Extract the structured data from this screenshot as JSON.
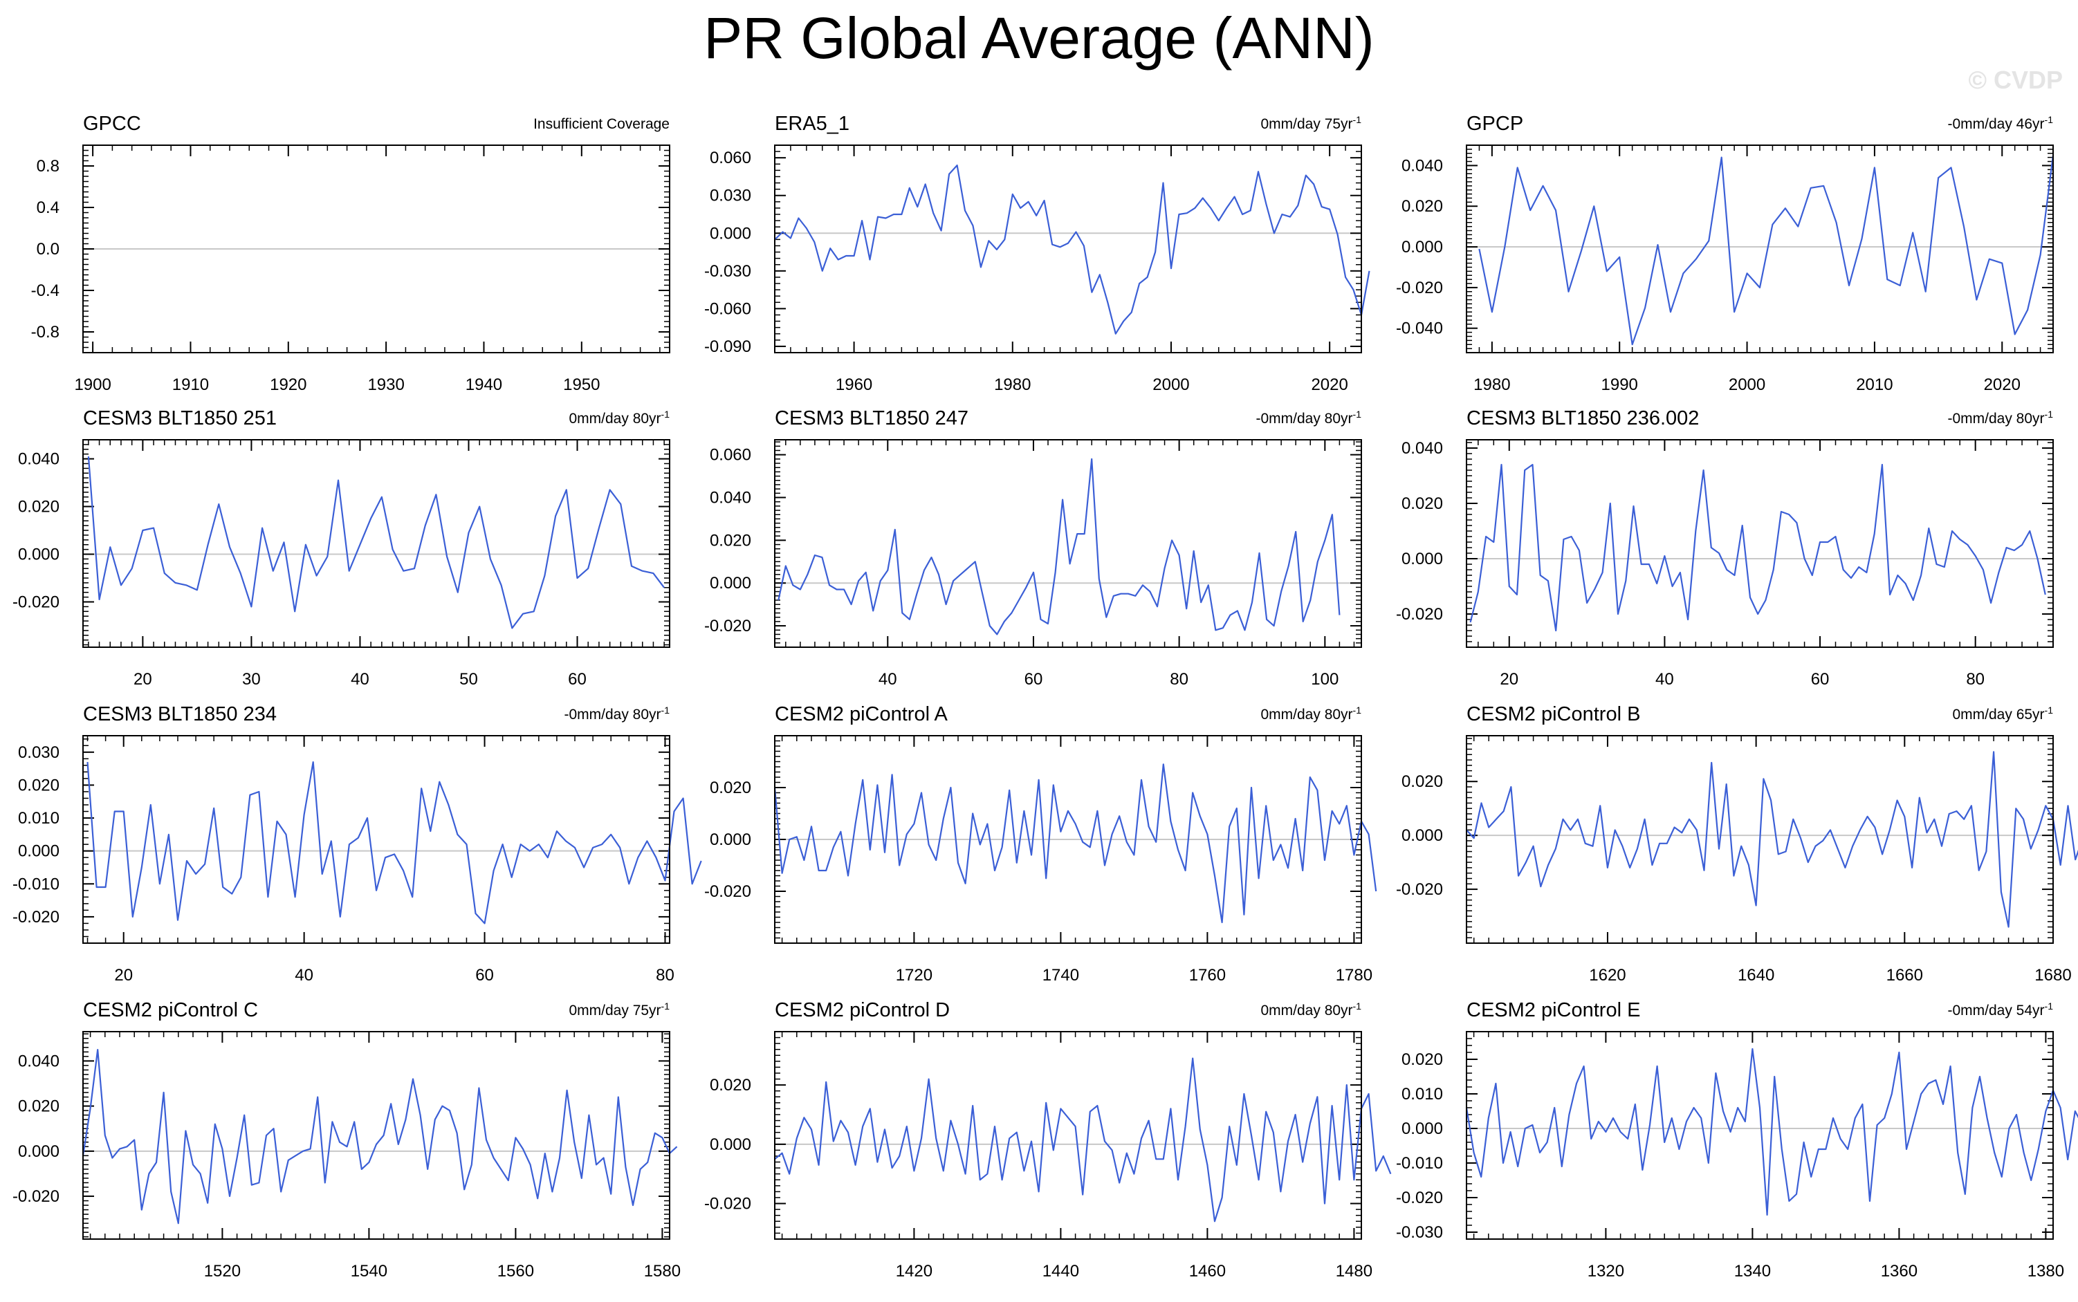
{
  "figure": {
    "title": "PR Global Average (ANN)",
    "watermark": "© CVDP",
    "line_color": "#3b5fd6",
    "zero_line_color": "#c8c8c8"
  },
  "chart_data": [
    {
      "type": "line",
      "title": "GPCC",
      "trend": "Insufficient Coverage",
      "xlim": [
        1899,
        1959
      ],
      "ylim": [
        -1.0,
        1.0
      ],
      "xticks": [
        1900,
        1910,
        1920,
        1930,
        1940,
        1950
      ],
      "yticks": [
        -0.8,
        -0.4,
        0.0,
        0.4,
        0.8
      ],
      "ytick_labels": [
        "-0.8",
        "-0.4",
        "0.0",
        "0.4",
        "0.8"
      ],
      "x_start": 1900,
      "values": []
    },
    {
      "type": "line",
      "title": "ERA5_1",
      "trend": "0mm/day 75yr",
      "trend_sup": "-1",
      "xlim": [
        1950,
        2024
      ],
      "ylim": [
        -0.095,
        0.07
      ],
      "xticks": [
        1960,
        1980,
        2000,
        2020
      ],
      "yticks": [
        -0.09,
        -0.06,
        -0.03,
        0.0,
        0.03,
        0.06
      ],
      "ytick_labels": [
        "-0.090",
        "-0.060",
        "-0.030",
        "0.000",
        "0.030",
        "0.060"
      ],
      "x_start": 1950,
      "values": [
        -0.005,
        0.001,
        -0.004,
        0.012,
        0.004,
        -0.007,
        -0.03,
        -0.012,
        -0.021,
        -0.018,
        -0.018,
        0.01,
        -0.021,
        0.013,
        0.012,
        0.015,
        0.015,
        0.036,
        0.021,
        0.039,
        0.016,
        0.002,
        0.047,
        0.054,
        0.018,
        0.006,
        -0.027,
        -0.006,
        -0.013,
        -0.005,
        0.031,
        0.02,
        0.025,
        0.014,
        0.026,
        -0.009,
        -0.011,
        -0.008,
        0.001,
        -0.01,
        -0.047,
        -0.033,
        -0.055,
        -0.08,
        -0.07,
        -0.063,
        -0.04,
        -0.035,
        -0.015,
        0.04,
        -0.028,
        0.015,
        0.016,
        0.02,
        0.028,
        0.02,
        0.01,
        0.02,
        0.029,
        0.015,
        0.018,
        0.049,
        0.023,
        0.0,
        0.015,
        0.013,
        0.022,
        0.046,
        0.039,
        0.021,
        0.019,
        -0.001,
        -0.035,
        -0.045,
        -0.065,
        -0.03
      ]
    },
    {
      "type": "line",
      "title": "GPCP",
      "trend": "-0mm/day 46yr",
      "trend_sup": "-1",
      "xlim": [
        1978,
        2024
      ],
      "ylim": [
        -0.052,
        0.05
      ],
      "xticks": [
        1980,
        1990,
        2000,
        2010,
        2020
      ],
      "yticks": [
        -0.04,
        -0.02,
        0.0,
        0.02,
        0.04
      ],
      "ytick_labels": [
        "-0.040",
        "-0.020",
        "0.000",
        "0.020",
        "0.040"
      ],
      "x_start": 1979,
      "values": [
        -0.001,
        -0.032,
        0.0,
        0.039,
        0.018,
        0.03,
        0.018,
        -0.022,
        -0.002,
        0.02,
        -0.012,
        -0.005,
        -0.048,
        -0.03,
        0.001,
        -0.032,
        -0.013,
        -0.006,
        0.003,
        0.044,
        -0.032,
        -0.013,
        -0.02,
        0.011,
        0.019,
        0.01,
        0.029,
        0.03,
        0.012,
        -0.019,
        0.004,
        0.039,
        -0.016,
        -0.019,
        0.007,
        -0.022,
        0.034,
        0.039,
        0.01,
        -0.026,
        -0.006,
        -0.008,
        -0.043,
        -0.031,
        -0.004,
        0.045
      ]
    },
    {
      "type": "line",
      "title": "CESM3 BLT1850 251",
      "trend": "0mm/day 80yr",
      "trend_sup": "-1",
      "xlim": [
        14.5,
        68.5
      ],
      "ylim": [
        -0.039,
        0.048
      ],
      "xticks": [
        20,
        30,
        40,
        50,
        60
      ],
      "yticks": [
        -0.02,
        0.0,
        0.02,
        0.04
      ],
      "ytick_labels": [
        "-0.020",
        "0.000",
        "0.020",
        "0.040"
      ],
      "x_start": 15,
      "values": [
        0.041,
        -0.019,
        0.003,
        -0.013,
        -0.006,
        0.01,
        0.011,
        -0.008,
        -0.012,
        -0.013,
        -0.015,
        0.004,
        0.021,
        0.003,
        -0.008,
        -0.022,
        0.011,
        -0.007,
        0.005,
        -0.024,
        0.004,
        -0.009,
        -0.001,
        0.031,
        -0.007,
        0.004,
        0.015,
        0.024,
        0.002,
        -0.007,
        -0.006,
        0.012,
        0.025,
        -0.001,
        -0.016,
        0.009,
        0.02,
        -0.002,
        -0.013,
        -0.031,
        -0.025,
        -0.024,
        -0.009,
        0.016,
        0.027,
        -0.01,
        -0.006,
        0.011,
        0.027,
        0.021,
        -0.005,
        -0.007,
        -0.008,
        -0.014
      ]
    },
    {
      "type": "line",
      "title": "CESM3 BLT1850 247",
      "trend": "-0mm/day 80yr",
      "trend_sup": "-1",
      "xlim": [
        24.5,
        105
      ],
      "ylim": [
        -0.03,
        0.067
      ],
      "xticks": [
        40,
        60,
        80,
        100
      ],
      "yticks": [
        -0.02,
        0.0,
        0.02,
        0.04,
        0.06
      ],
      "ytick_labels": [
        "-0.020",
        "0.000",
        "0.020",
        "0.040",
        "0.060"
      ],
      "x_start": 25,
      "values": [
        -0.008,
        0.008,
        -0.001,
        -0.003,
        0.004,
        0.013,
        0.012,
        -0.001,
        -0.003,
        -0.003,
        -0.01,
        0.001,
        0.005,
        -0.013,
        0.001,
        0.006,
        0.025,
        -0.014,
        -0.017,
        -0.005,
        0.006,
        0.012,
        0.004,
        -0.01,
        0.001,
        0.004,
        0.007,
        0.01,
        -0.005,
        -0.02,
        -0.024,
        -0.018,
        -0.014,
        -0.008,
        -0.002,
        0.005,
        -0.017,
        -0.019,
        0.005,
        0.039,
        0.009,
        0.023,
        0.023,
        0.058,
        0.002,
        -0.016,
        -0.006,
        -0.005,
        -0.005,
        -0.006,
        -0.001,
        -0.004,
        -0.011,
        0.007,
        0.02,
        0.013,
        -0.012,
        0.015,
        -0.009,
        -0.001,
        -0.022,
        -0.021,
        -0.015,
        -0.013,
        -0.022,
        -0.009,
        0.014,
        -0.017,
        -0.02,
        -0.004,
        0.008,
        0.024,
        -0.018,
        -0.008,
        0.01,
        0.02,
        0.032,
        -0.015
      ]
    },
    {
      "type": "line",
      "title": "CESM3 BLT1850 236.002",
      "trend": "-0mm/day 80yr",
      "trend_sup": "-1",
      "xlim": [
        14.5,
        90
      ],
      "ylim": [
        -0.032,
        0.043
      ],
      "xticks": [
        20,
        40,
        60,
        80
      ],
      "yticks": [
        -0.02,
        0.0,
        0.02,
        0.04
      ],
      "ytick_labels": [
        "-0.020",
        "0.000",
        "0.020",
        "0.040"
      ],
      "x_start": 15,
      "values": [
        -0.023,
        -0.012,
        0.008,
        0.006,
        0.034,
        -0.01,
        -0.013,
        0.032,
        0.034,
        -0.006,
        -0.008,
        -0.026,
        0.007,
        0.008,
        0.003,
        -0.016,
        -0.011,
        -0.005,
        0.02,
        -0.02,
        -0.008,
        0.019,
        -0.002,
        -0.002,
        -0.009,
        0.001,
        -0.01,
        -0.005,
        -0.022,
        0.01,
        0.032,
        0.004,
        0.002,
        -0.004,
        -0.006,
        0.012,
        -0.014,
        -0.02,
        -0.015,
        -0.004,
        0.017,
        0.016,
        0.013,
        0.0,
        -0.006,
        0.006,
        0.006,
        0.008,
        -0.004,
        -0.007,
        -0.003,
        -0.005,
        0.009,
        0.034,
        -0.013,
        -0.006,
        -0.009,
        -0.015,
        -0.006,
        0.011,
        -0.002,
        -0.003,
        0.01,
        0.007,
        0.005,
        0.001,
        -0.004,
        -0.016,
        -0.005,
        0.004,
        0.003,
        0.005,
        0.01,
        0.0,
        -0.013
      ]
    },
    {
      "type": "line",
      "title": "CESM3 BLT1850 234",
      "trend": "-0mm/day 80yr",
      "trend_sup": "-1",
      "xlim": [
        15.5,
        80.5
      ],
      "ylim": [
        -0.028,
        0.035
      ],
      "xticks": [
        20,
        40,
        60,
        80
      ],
      "yticks": [
        -0.02,
        -0.01,
        0.0,
        0.01,
        0.02,
        0.03
      ],
      "ytick_labels": [
        "-0.020",
        "-0.010",
        "0.000",
        "0.010",
        "0.020",
        "0.030"
      ],
      "x_start": 16,
      "values": [
        0.027,
        -0.011,
        -0.011,
        0.012,
        0.012,
        -0.02,
        -0.005,
        0.014,
        -0.01,
        0.005,
        -0.021,
        -0.003,
        -0.007,
        -0.004,
        0.013,
        -0.011,
        -0.013,
        -0.008,
        0.017,
        0.018,
        -0.014,
        0.009,
        0.005,
        -0.014,
        0.011,
        0.027,
        -0.007,
        0.003,
        -0.02,
        0.002,
        0.004,
        0.01,
        -0.012,
        -0.002,
        -0.001,
        -0.006,
        -0.014,
        0.019,
        0.006,
        0.021,
        0.014,
        0.005,
        0.002,
        -0.019,
        -0.022,
        -0.006,
        0.002,
        -0.008,
        0.002,
        0.0,
        0.002,
        -0.002,
        0.006,
        0.003,
        0.001,
        -0.005,
        0.001,
        0.002,
        0.005,
        0.001,
        -0.01,
        -0.002,
        0.003,
        -0.002,
        -0.009,
        0.012,
        0.016,
        -0.01,
        -0.003
      ]
    },
    {
      "type": "line",
      "title": "CESM2 piControl A",
      "trend": "0mm/day 80yr",
      "trend_sup": "-1",
      "xlim": [
        1701,
        1781
      ],
      "ylim": [
        -0.04,
        0.04
      ],
      "xticks": [
        1720,
        1740,
        1760,
        1780
      ],
      "yticks": [
        -0.02,
        0.0,
        0.02
      ],
      "ytick_labels": [
        "-0.020",
        "0.000",
        "0.020"
      ],
      "x_start": 1701,
      "values": [
        0.02,
        -0.013,
        0.0,
        0.001,
        -0.008,
        0.005,
        -0.012,
        -0.012,
        -0.003,
        0.003,
        -0.014,
        0.006,
        0.023,
        -0.004,
        0.021,
        -0.005,
        0.025,
        -0.01,
        0.002,
        0.006,
        0.018,
        -0.002,
        -0.008,
        0.008,
        0.02,
        -0.009,
        -0.017,
        0.01,
        -0.002,
        0.006,
        -0.012,
        -0.003,
        0.019,
        -0.009,
        0.011,
        -0.006,
        0.023,
        -0.015,
        0.021,
        0.003,
        0.011,
        0.006,
        -0.001,
        -0.003,
        0.011,
        -0.01,
        0.002,
        0.009,
        -0.001,
        -0.006,
        0.023,
        0.005,
        -0.001,
        0.029,
        0.007,
        -0.004,
        -0.012,
        0.018,
        0.009,
        0.002,
        -0.014,
        -0.032,
        0.005,
        0.012,
        -0.029,
        0.02,
        -0.015,
        0.013,
        -0.008,
        -0.002,
        -0.011,
        0.008,
        -0.012,
        0.024,
        0.019,
        -0.008,
        0.011,
        0.006,
        0.013,
        -0.006,
        0.007,
        0.002,
        -0.02
      ]
    },
    {
      "type": "line",
      "title": "CESM2 piControl B",
      "trend": "0mm/day 65yr",
      "trend_sup": "-1",
      "xlim": [
        1601,
        1680
      ],
      "ylim": [
        -0.04,
        0.037
      ],
      "xticks": [
        1620,
        1640,
        1660,
        1680
      ],
      "yticks": [
        -0.02,
        0.0,
        0.02
      ],
      "ytick_labels": [
        "-0.020",
        "0.000",
        "0.020"
      ],
      "x_start": 1601,
      "values": [
        0.002,
        -0.001,
        0.012,
        0.003,
        0.006,
        0.009,
        0.018,
        -0.015,
        -0.01,
        -0.004,
        -0.019,
        -0.011,
        -0.005,
        0.006,
        0.002,
        0.006,
        -0.003,
        -0.004,
        0.011,
        -0.012,
        0.002,
        -0.004,
        -0.012,
        -0.005,
        0.006,
        -0.011,
        -0.003,
        -0.003,
        0.003,
        0.001,
        0.006,
        0.002,
        -0.013,
        0.027,
        -0.005,
        0.019,
        -0.015,
        -0.004,
        -0.011,
        -0.026,
        0.021,
        0.013,
        -0.007,
        -0.006,
        0.006,
        -0.001,
        -0.01,
        -0.004,
        -0.002,
        0.002,
        -0.005,
        -0.012,
        -0.004,
        0.002,
        0.007,
        0.003,
        -0.007,
        0.002,
        0.013,
        0.007,
        -0.012,
        0.014,
        0.001,
        0.006,
        -0.004,
        0.008,
        0.009,
        0.006,
        0.011,
        -0.013,
        -0.006,
        0.031,
        -0.021,
        -0.034,
        0.01,
        0.006,
        -0.005,
        0.002,
        0.011,
        0.006,
        -0.011,
        0.011,
        -0.009,
        -0.001
      ]
    },
    {
      "type": "line",
      "title": "CESM2 piControl C",
      "trend": "0mm/day 75yr",
      "trend_sup": "-1",
      "xlim": [
        1501,
        1581
      ],
      "ylim": [
        -0.039,
        0.053
      ],
      "xticks": [
        1520,
        1540,
        1560,
        1580
      ],
      "yticks": [
        -0.02,
        0.0,
        0.02,
        0.04
      ],
      "ytick_labels": [
        "-0.020",
        "0.000",
        "0.020",
        "0.040"
      ],
      "x_start": 1501,
      "values": [
        -0.002,
        0.019,
        0.045,
        0.007,
        -0.003,
        0.001,
        0.002,
        0.005,
        -0.026,
        -0.01,
        -0.005,
        0.026,
        -0.018,
        -0.032,
        0.009,
        -0.006,
        -0.01,
        -0.023,
        0.012,
        0.001,
        -0.02,
        -0.003,
        0.016,
        -0.015,
        -0.014,
        0.007,
        0.01,
        -0.018,
        -0.004,
        -0.002,
        0.0,
        0.001,
        0.024,
        -0.014,
        0.013,
        0.004,
        0.002,
        0.013,
        -0.008,
        -0.005,
        0.003,
        0.007,
        0.021,
        0.003,
        0.014,
        0.032,
        0.016,
        -0.008,
        0.014,
        0.02,
        0.018,
        0.008,
        -0.017,
        -0.006,
        0.028,
        0.005,
        -0.003,
        -0.008,
        -0.013,
        0.006,
        0.001,
        -0.006,
        -0.021,
        -0.001,
        -0.018,
        -0.003,
        0.027,
        0.004,
        -0.012,
        0.016,
        -0.006,
        -0.003,
        -0.019,
        0.024,
        -0.007,
        -0.024,
        -0.008,
        -0.005,
        0.008,
        0.006,
        -0.001,
        0.002
      ]
    },
    {
      "type": "line",
      "title": "CESM2 piControl D",
      "trend": "0mm/day 80yr",
      "trend_sup": "-1",
      "xlim": [
        1401,
        1481
      ],
      "ylim": [
        -0.032,
        0.038
      ],
      "xticks": [
        1420,
        1440,
        1460,
        1480
      ],
      "yticks": [
        -0.02,
        0.0,
        0.02
      ],
      "ytick_labels": [
        "-0.020",
        "0.000",
        "0.020"
      ],
      "x_start": 1401,
      "values": [
        -0.005,
        -0.003,
        -0.01,
        0.002,
        0.009,
        0.005,
        -0.007,
        0.021,
        0.001,
        0.008,
        0.004,
        -0.007,
        0.006,
        0.012,
        -0.006,
        0.005,
        -0.008,
        -0.004,
        0.006,
        -0.009,
        0.002,
        0.022,
        0.002,
        -0.009,
        0.008,
        0.0,
        -0.01,
        0.013,
        -0.012,
        -0.01,
        0.006,
        -0.012,
        0.002,
        0.004,
        -0.009,
        0.001,
        -0.016,
        0.014,
        -0.002,
        0.012,
        0.009,
        0.006,
        -0.017,
        0.011,
        0.013,
        0.001,
        -0.002,
        -0.013,
        -0.003,
        -0.01,
        0.002,
        0.008,
        -0.005,
        -0.005,
        0.012,
        -0.012,
        0.006,
        0.029,
        0.005,
        -0.007,
        -0.026,
        -0.018,
        0.006,
        -0.007,
        0.017,
        0.003,
        -0.012,
        0.011,
        0.004,
        -0.016,
        0.001,
        0.01,
        -0.006,
        0.007,
        0.016,
        -0.02,
        0.013,
        -0.012,
        0.02,
        -0.012,
        0.012,
        0.017,
        -0.009,
        -0.004,
        -0.01
      ]
    },
    {
      "type": "line",
      "title": "CESM2 piControl E",
      "trend": "-0mm/day 54yr",
      "trend_sup": "-1",
      "xlim": [
        1301,
        1381
      ],
      "ylim": [
        -0.032,
        0.028
      ],
      "xticks": [
        1320,
        1340,
        1360,
        1380
      ],
      "yticks": [
        -0.03,
        -0.02,
        -0.01,
        0.0,
        0.01,
        0.02
      ],
      "ytick_labels": [
        "-0.030",
        "-0.020",
        "-0.010",
        "0.000",
        "0.010",
        "0.020"
      ],
      "x_start": 1301,
      "values": [
        0.006,
        -0.007,
        -0.014,
        0.003,
        0.013,
        -0.01,
        -0.001,
        -0.011,
        0.0,
        0.001,
        -0.007,
        -0.004,
        0.006,
        -0.011,
        0.004,
        0.013,
        0.018,
        -0.003,
        0.002,
        -0.001,
        0.003,
        -0.001,
        -0.003,
        0.007,
        -0.012,
        0.001,
        0.018,
        -0.004,
        0.003,
        -0.006,
        0.002,
        0.006,
        0.003,
        -0.01,
        0.016,
        0.005,
        -0.001,
        0.006,
        0.002,
        0.023,
        0.006,
        -0.025,
        0.015,
        -0.006,
        -0.021,
        -0.019,
        -0.004,
        -0.014,
        -0.006,
        -0.006,
        0.003,
        -0.003,
        -0.006,
        0.003,
        0.007,
        -0.021,
        0.001,
        0.003,
        0.01,
        0.022,
        -0.006,
        0.002,
        0.01,
        0.013,
        0.014,
        0.007,
        0.018,
        -0.007,
        -0.019,
        0.006,
        0.015,
        0.003,
        -0.007,
        -0.014,
        0.0,
        0.004,
        -0.007,
        -0.015,
        -0.006,
        0.005,
        0.011,
        0.006,
        -0.009,
        0.005,
        0.001,
        -0.009,
        -0.002
      ]
    }
  ]
}
